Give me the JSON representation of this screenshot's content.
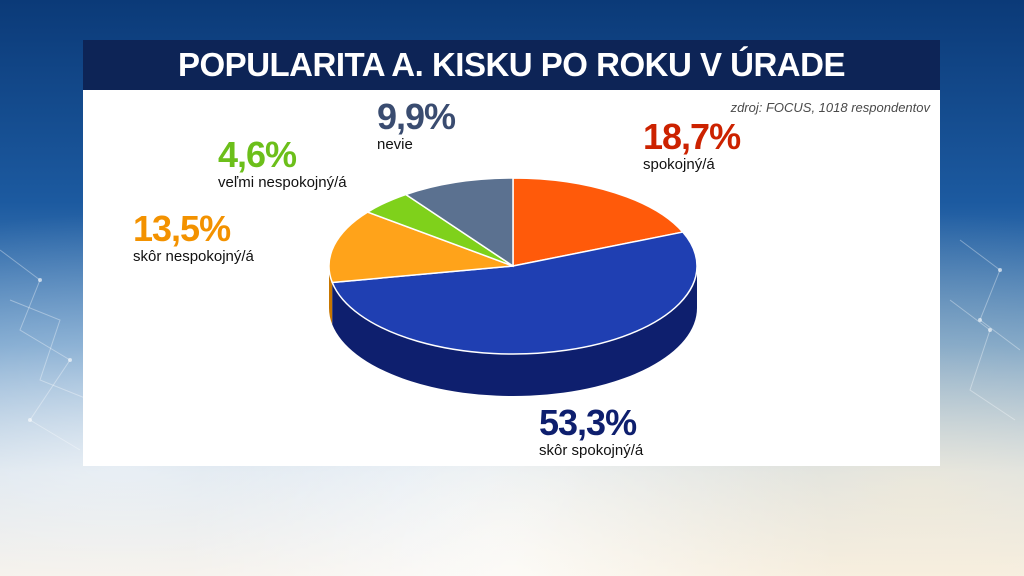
{
  "title": "POPULARITA A. KISKU PO ROKU V ÚRADE",
  "source": "zdroj: FOCUS, 1018 respondentov",
  "chart_data": {
    "type": "pie",
    "title": "POPULARITA A. KISKU PO ROKU V ÚRADE",
    "slices": [
      {
        "label": "spokojný/á",
        "value": 18.7,
        "display": "18,7%",
        "color": "#ff5a0a",
        "side": "#b53a00",
        "label_color": "#cc2200"
      },
      {
        "label": "skôr spokojný/á",
        "value": 53.3,
        "display": "53,3%",
        "color": "#1f3fb2",
        "side": "#0e1f6e",
        "label_color": "#0e1f6e"
      },
      {
        "label": "skôr nespokojný/á",
        "value": 13.5,
        "display": "13,5%",
        "color": "#ffa31a",
        "side": "#c77600",
        "label_color": "#f39200"
      },
      {
        "label": "veľmi nespokojný/á",
        "value": 4.6,
        "display": "4,6%",
        "color": "#7fd11b",
        "side": "#4e8a08",
        "label_color": "#6cbf1a"
      },
      {
        "label": "nevie",
        "value": 9.9,
        "display": "9,9%",
        "color": "#5b7190",
        "side": "#3a4c66",
        "label_color": "#3a4c70"
      }
    ]
  }
}
